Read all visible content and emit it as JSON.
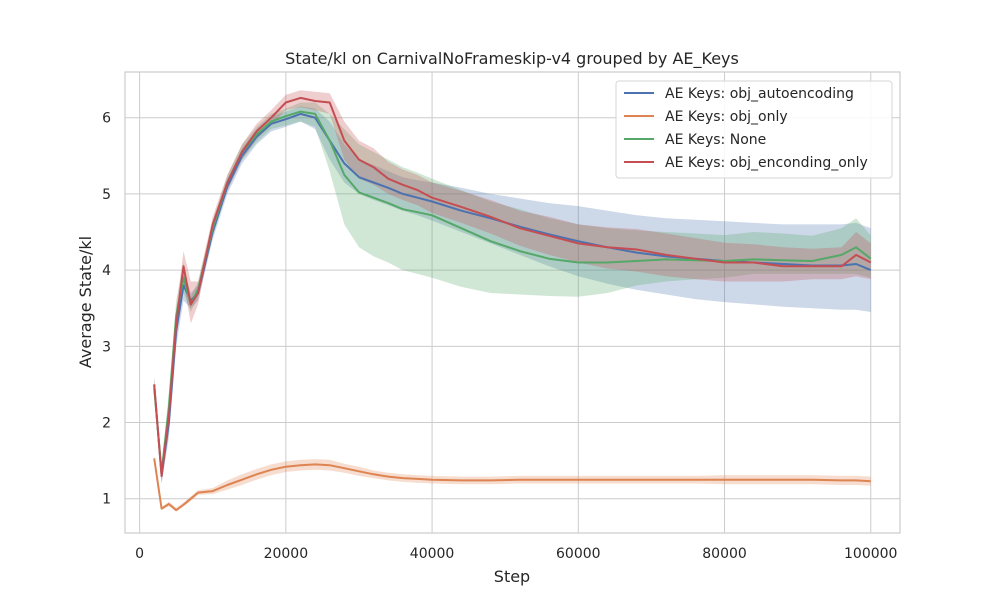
{
  "chart_data": {
    "type": "line",
    "title": "State/kl on CarnivalNoFrameskip-v4 grouped by AE_Keys",
    "xlabel": "Step",
    "ylabel": "Average State/kl",
    "xlim": [
      -2000,
      104000
    ],
    "ylim": [
      0.55,
      6.6
    ],
    "xticks": [
      0,
      20000,
      40000,
      60000,
      80000,
      100000
    ],
    "xtick_labels": [
      "0",
      "20000",
      "40000",
      "60000",
      "80000",
      "100000"
    ],
    "yticks": [
      1,
      2,
      3,
      4,
      5,
      6
    ],
    "ytick_labels": [
      "1",
      "2",
      "3",
      "4",
      "5",
      "6"
    ],
    "grid": true,
    "legend_position": "top-right",
    "background": "#eaeaf2",
    "x": [
      2000,
      3000,
      4000,
      5000,
      6000,
      7000,
      8000,
      10000,
      12000,
      14000,
      16000,
      18000,
      20000,
      22000,
      24000,
      26000,
      28000,
      30000,
      32000,
      34000,
      36000,
      38000,
      40000,
      44000,
      48000,
      52000,
      56000,
      60000,
      64000,
      68000,
      72000,
      76000,
      80000,
      84000,
      88000,
      92000,
      96000,
      98000,
      100000
    ],
    "series": [
      {
        "name": "AE Keys: obj_autoencoding",
        "color": "#4c72b0",
        "values": [
          2.5,
          1.3,
          2.0,
          3.2,
          3.8,
          3.6,
          3.7,
          4.5,
          5.1,
          5.5,
          5.75,
          5.92,
          5.98,
          6.05,
          6.0,
          5.7,
          5.4,
          5.22,
          5.15,
          5.08,
          5.0,
          4.95,
          4.9,
          4.78,
          4.68,
          4.57,
          4.47,
          4.38,
          4.3,
          4.23,
          4.18,
          4.15,
          4.12,
          4.1,
          4.08,
          4.06,
          4.06,
          4.08,
          4.0
        ],
        "lower": [
          2.4,
          1.2,
          1.8,
          3.0,
          3.6,
          3.5,
          3.6,
          4.4,
          5.0,
          5.4,
          5.65,
          5.82,
          5.88,
          5.95,
          5.85,
          5.45,
          5.15,
          5.0,
          4.92,
          4.85,
          4.78,
          4.72,
          4.65,
          4.5,
          4.35,
          4.2,
          4.05,
          3.92,
          3.82,
          3.74,
          3.68,
          3.62,
          3.58,
          3.55,
          3.52,
          3.5,
          3.48,
          3.48,
          3.45
        ],
        "upper": [
          2.6,
          1.4,
          2.2,
          3.4,
          4.0,
          3.7,
          3.8,
          4.6,
          5.2,
          5.6,
          5.85,
          6.02,
          6.08,
          6.15,
          6.12,
          5.95,
          5.65,
          5.45,
          5.38,
          5.3,
          5.22,
          5.18,
          5.15,
          5.08,
          5.0,
          4.94,
          4.88,
          4.84,
          4.78,
          4.72,
          4.68,
          4.66,
          4.64,
          4.62,
          4.6,
          4.6,
          4.6,
          4.62,
          4.55
        ]
      },
      {
        "name": "AE Keys: obj_only",
        "color": "#dd8452",
        "values": [
          1.53,
          0.87,
          0.93,
          0.85,
          0.92,
          1.0,
          1.08,
          1.1,
          1.18,
          1.25,
          1.32,
          1.38,
          1.42,
          1.44,
          1.45,
          1.44,
          1.4,
          1.36,
          1.32,
          1.29,
          1.27,
          1.26,
          1.25,
          1.24,
          1.24,
          1.25,
          1.25,
          1.25,
          1.25,
          1.25,
          1.25,
          1.25,
          1.25,
          1.25,
          1.25,
          1.25,
          1.24,
          1.24,
          1.23
        ],
        "lower": [
          1.5,
          0.85,
          0.9,
          0.83,
          0.9,
          0.97,
          1.05,
          1.06,
          1.12,
          1.18,
          1.25,
          1.31,
          1.35,
          1.37,
          1.38,
          1.37,
          1.34,
          1.3,
          1.27,
          1.24,
          1.22,
          1.21,
          1.2,
          1.19,
          1.19,
          1.2,
          1.2,
          1.2,
          1.2,
          1.2,
          1.2,
          1.2,
          1.19,
          1.19,
          1.19,
          1.19,
          1.18,
          1.18,
          1.17
        ],
        "upper": [
          1.56,
          0.89,
          0.96,
          0.88,
          0.95,
          1.03,
          1.11,
          1.14,
          1.24,
          1.32,
          1.39,
          1.45,
          1.49,
          1.51,
          1.52,
          1.51,
          1.46,
          1.42,
          1.37,
          1.34,
          1.32,
          1.31,
          1.3,
          1.29,
          1.29,
          1.3,
          1.3,
          1.3,
          1.3,
          1.3,
          1.3,
          1.3,
          1.31,
          1.31,
          1.31,
          1.31,
          1.3,
          1.3,
          1.29
        ]
      },
      {
        "name": "AE Keys: None",
        "color": "#55a868",
        "values": [
          2.45,
          1.35,
          2.2,
          3.4,
          3.9,
          3.55,
          3.75,
          4.55,
          5.15,
          5.55,
          5.78,
          5.95,
          6.02,
          6.08,
          6.05,
          5.7,
          5.25,
          5.02,
          4.95,
          4.88,
          4.8,
          4.76,
          4.72,
          4.55,
          4.38,
          4.25,
          4.15,
          4.1,
          4.1,
          4.12,
          4.14,
          4.13,
          4.12,
          4.14,
          4.13,
          4.12,
          4.2,
          4.3,
          4.15
        ],
        "lower": [
          2.35,
          1.25,
          2.0,
          3.2,
          3.7,
          3.45,
          3.65,
          4.45,
          5.05,
          5.45,
          5.68,
          5.85,
          5.9,
          5.95,
          5.88,
          5.3,
          4.6,
          4.3,
          4.18,
          4.1,
          4.0,
          3.95,
          3.9,
          3.78,
          3.7,
          3.68,
          3.66,
          3.65,
          3.7,
          3.8,
          3.85,
          3.88,
          3.9,
          3.95,
          3.95,
          3.95,
          3.95,
          3.95,
          3.9
        ],
        "upper": [
          2.55,
          1.45,
          2.4,
          3.6,
          4.1,
          3.65,
          3.85,
          4.65,
          5.25,
          5.65,
          5.88,
          6.05,
          6.12,
          6.2,
          6.2,
          6.05,
          5.85,
          5.65,
          5.55,
          5.45,
          5.35,
          5.28,
          5.2,
          5.05,
          4.9,
          4.8,
          4.68,
          4.6,
          4.55,
          4.52,
          4.5,
          4.48,
          4.46,
          4.5,
          4.48,
          4.45,
          4.55,
          4.68,
          4.45
        ]
      },
      {
        "name": "AE Keys: obj_enconding_only",
        "color": "#c44e52",
        "values": [
          2.5,
          1.3,
          2.1,
          3.3,
          4.05,
          3.55,
          3.7,
          4.6,
          5.15,
          5.55,
          5.82,
          6.0,
          6.2,
          6.26,
          6.22,
          6.2,
          5.7,
          5.45,
          5.35,
          5.2,
          5.12,
          5.05,
          4.95,
          4.83,
          4.7,
          4.55,
          4.45,
          4.35,
          4.3,
          4.27,
          4.2,
          4.15,
          4.1,
          4.1,
          4.05,
          4.05,
          4.05,
          4.2,
          4.1
        ],
        "lower": [
          2.4,
          1.2,
          1.9,
          3.1,
          3.85,
          3.3,
          3.55,
          4.5,
          5.05,
          5.45,
          5.72,
          5.9,
          6.1,
          6.14,
          6.1,
          6.05,
          5.45,
          5.2,
          5.12,
          5.0,
          4.92,
          4.85,
          4.75,
          4.62,
          4.48,
          4.32,
          4.2,
          4.1,
          4.02,
          3.98,
          3.92,
          3.88,
          3.85,
          3.85,
          3.85,
          3.88,
          3.88,
          3.92,
          3.88
        ],
        "upper": [
          2.6,
          1.4,
          2.3,
          3.5,
          4.25,
          3.85,
          3.85,
          4.7,
          5.25,
          5.65,
          5.92,
          6.1,
          6.3,
          6.36,
          6.34,
          6.32,
          5.95,
          5.7,
          5.6,
          5.42,
          5.32,
          5.25,
          5.15,
          5.04,
          4.92,
          4.78,
          4.7,
          4.6,
          4.56,
          4.54,
          4.48,
          4.42,
          4.36,
          4.34,
          4.3,
          4.28,
          4.3,
          4.5,
          4.35
        ]
      }
    ]
  }
}
